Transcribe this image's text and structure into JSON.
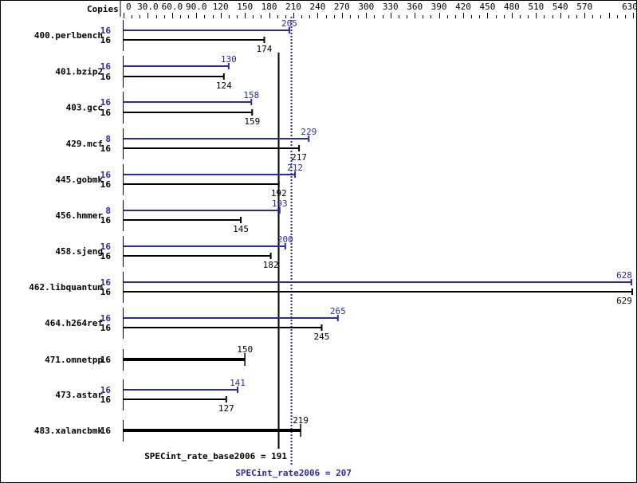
{
  "chart_data": {
    "type": "bar",
    "orientation": "horizontal",
    "axis_title": "Copies",
    "xlim": [
      0,
      630
    ],
    "ticks": [
      "0",
      "30.0",
      "60.0",
      "90.0",
      "120",
      "150",
      "180",
      "210",
      "240",
      "270",
      "300",
      "330",
      "360",
      "390",
      "420",
      "450",
      "480",
      "510",
      "540",
      "570",
      "630"
    ],
    "tick_values": [
      0,
      30,
      60,
      90,
      120,
      150,
      180,
      210,
      240,
      270,
      300,
      330,
      360,
      390,
      420,
      450,
      480,
      510,
      540,
      570,
      630
    ],
    "colors": {
      "base": "#000000",
      "peak": "#2a2aa8"
    },
    "benchmarks": [
      {
        "name": "400.perlbench",
        "peak_copies": "16",
        "peak": 205,
        "base_copies": "16",
        "base": 174
      },
      {
        "name": "401.bzip2",
        "peak_copies": "16",
        "peak": 130,
        "base_copies": "16",
        "base": 124
      },
      {
        "name": "403.gcc",
        "peak_copies": "16",
        "peak": 158,
        "base_copies": "16",
        "base": 159
      },
      {
        "name": "429.mcf",
        "peak_copies": "8",
        "peak": 229,
        "base_copies": "16",
        "base": 217
      },
      {
        "name": "445.gobmk",
        "peak_copies": "16",
        "peak": 212,
        "base_copies": "16",
        "base": 192
      },
      {
        "name": "456.hmmer",
        "peak_copies": "8",
        "peak": 193,
        "base_copies": "16",
        "base": 145
      },
      {
        "name": "458.sjeng",
        "peak_copies": "16",
        "peak": 200,
        "base_copies": "16",
        "base": 182
      },
      {
        "name": "462.libquantum",
        "peak_copies": "16",
        "peak": 628,
        "base_copies": "16",
        "base": 629
      },
      {
        "name": "464.h264ref",
        "peak_copies": "16",
        "peak": 265,
        "base_copies": "16",
        "base": 245
      },
      {
        "name": "471.omnetpp",
        "peak_copies": null,
        "peak": null,
        "base_copies": "16",
        "base": 150
      },
      {
        "name": "473.astar",
        "peak_copies": "16",
        "peak": 141,
        "base_copies": "16",
        "base": 127
      },
      {
        "name": "483.xalancbmk",
        "peak_copies": null,
        "peak": null,
        "base_copies": "16",
        "base": 219
      }
    ],
    "summary": {
      "base_label": "SPECint_rate_base2006 = 191",
      "base_value": 191,
      "peak_label": "SPECint_rate2006 = 207",
      "peak_value": 207
    }
  }
}
